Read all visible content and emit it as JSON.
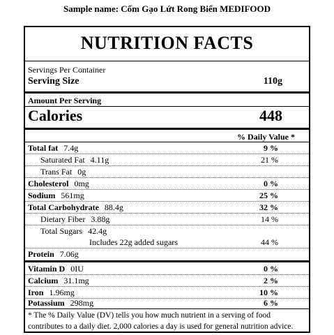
{
  "sample": "Sample name: Cốm Gạo Lứt Rong Biển MEDIFOOD",
  "title": "NUTRITION FACTS",
  "servings_per_container": "Servings Per Container",
  "serving_size": {
    "label": "Serving Size",
    "value": "110g"
  },
  "amount_per_serving": "Amount Per Serving",
  "calories": {
    "label": "Calories",
    "value": "448"
  },
  "daily_value_header": "% Daily Value *",
  "nutrients": {
    "total_fat": {
      "label": "Total fat",
      "amount": "7.4g",
      "dv": "9 %"
    },
    "saturated_fat": {
      "label": "Saturated Fat",
      "amount": "4.11g",
      "dv": "21 %"
    },
    "trans_fat": {
      "label": "Trans Fat",
      "amount": "0g"
    },
    "cholesterol": {
      "label": "Cholesterol",
      "amount": "0mg",
      "dv": "0 %"
    },
    "sodium": {
      "label": "Sodium",
      "amount": "561mg",
      "dv": "25 %"
    },
    "total_carbohydrate": {
      "label": "Total Carbohydrate",
      "amount": "88.4g",
      "dv": "32 %"
    },
    "dietary_fiber": {
      "label": "Dietary Fiber",
      "amount": "3.88g",
      "dv": "14 %"
    },
    "total_sugars": {
      "label": "Total Sugars",
      "amount": "42.4g"
    },
    "added_sugars": {
      "label": "Includes 22g added sugars",
      "dv": "44 %"
    },
    "protein": {
      "label": "Protein",
      "amount": "7.06g"
    }
  },
  "vitamins": {
    "vitamin_d": {
      "label": "Vitamin D",
      "amount": "0IU",
      "dv": "0 %"
    },
    "calcium": {
      "label": "Calcium",
      "amount": "31.1mg",
      "dv": "2 %"
    },
    "iron": {
      "label": "Iron",
      "amount": "1.96mg",
      "dv": "10 %"
    },
    "potassium": {
      "label": "Potassium",
      "amount": "298mg",
      "dv": "6 %"
    }
  },
  "footnote": "* The % Daily Value (DV) tells you how much nutrient in a serving of food contributes to a daily diet. 2,000 calories a day is used for general nutrition advice."
}
